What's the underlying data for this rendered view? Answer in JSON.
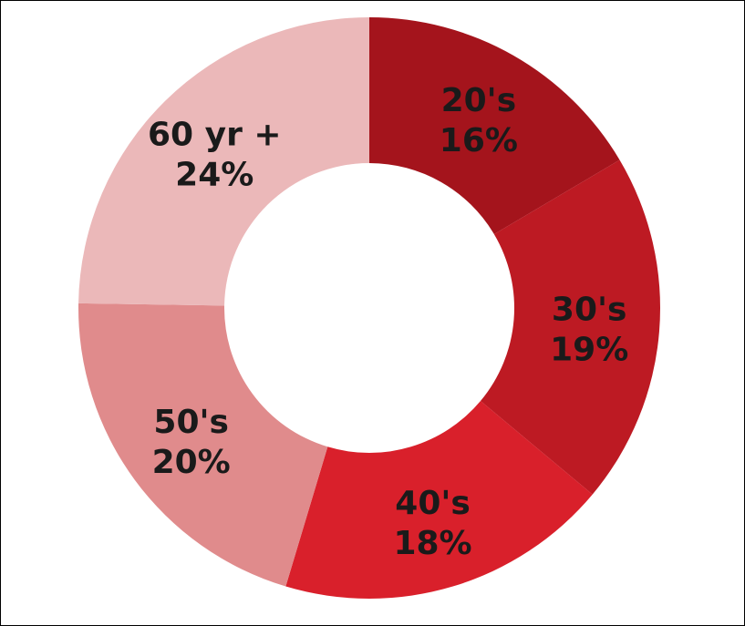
{
  "chart_data": {
    "type": "pie",
    "variant": "donut",
    "title": "",
    "slices": [
      {
        "category": "20's",
        "value": 16,
        "value_label": "16%",
        "color": "#a4141c"
      },
      {
        "category": "30's",
        "value": 19,
        "value_label": "19%",
        "color": "#bd1a23"
      },
      {
        "category": "40's",
        "value": 18,
        "value_label": "18%",
        "color": "#d9202b"
      },
      {
        "category": "50's",
        "value": 20,
        "value_label": "20%",
        "color": "#e08b8c"
      },
      {
        "category": "60 yr +",
        "value": 24,
        "value_label": "24%",
        "color": "#ebb8b9"
      }
    ],
    "legend": "none",
    "label_position": "inside"
  }
}
